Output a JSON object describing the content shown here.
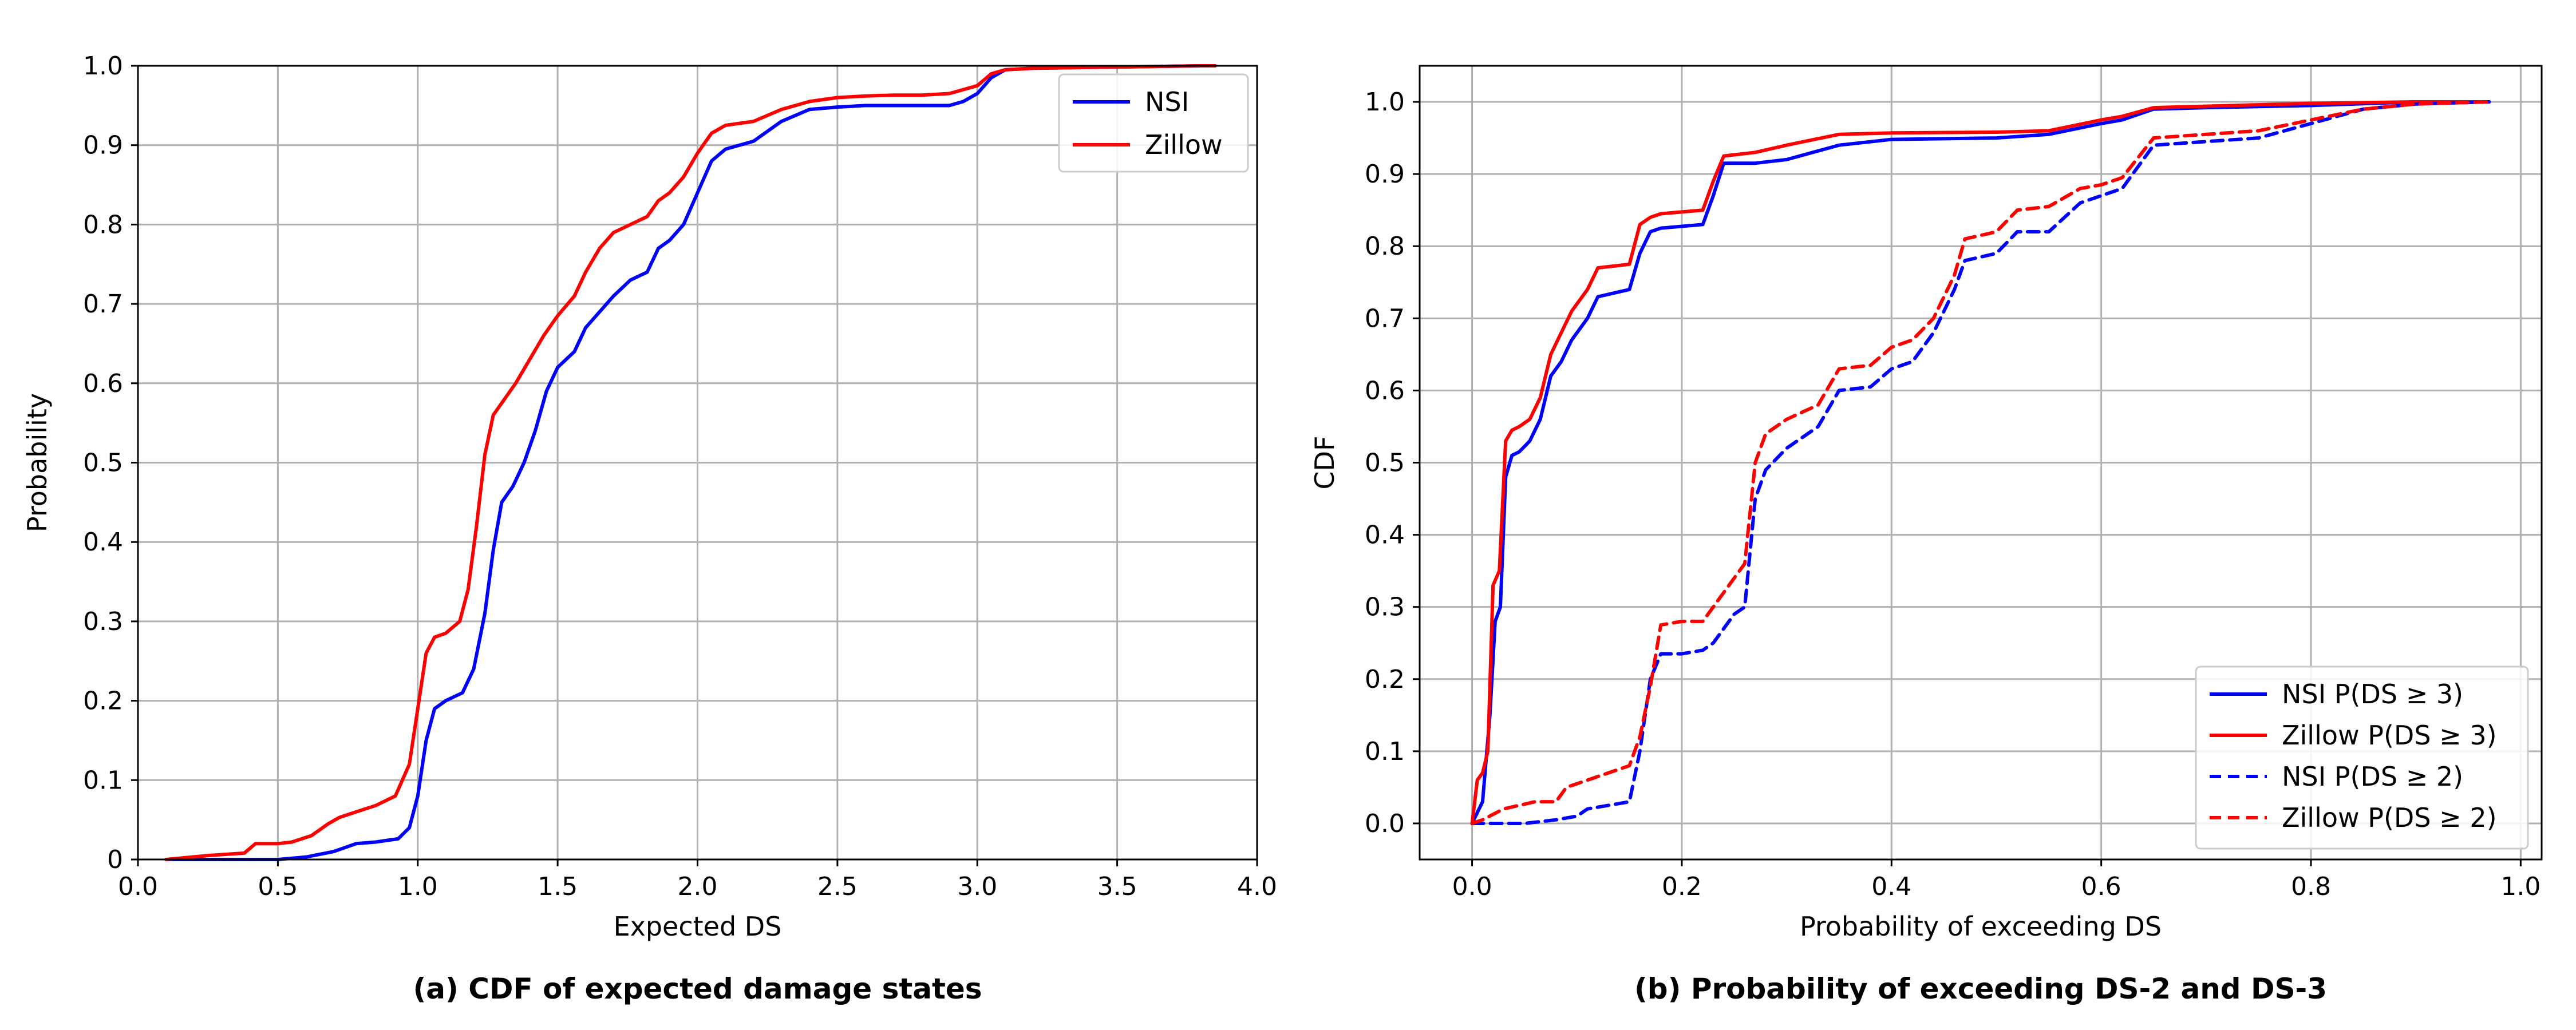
{
  "colors": {
    "nsi": "#0000ff",
    "zillow": "#ff0000",
    "grid": "#b0b0b0",
    "axis": "#000000"
  },
  "chart_data": [
    {
      "type": "line",
      "caption": "(a) CDF of expected damage states",
      "xlabel": "Expected DS",
      "ylabel": "Probability",
      "xlim": [
        0.0,
        4.0
      ],
      "ylim": [
        0.0,
        1.0
      ],
      "xticks": [
        0.0,
        0.5,
        1.0,
        1.5,
        2.0,
        2.5,
        3.0,
        3.5,
        4.0
      ],
      "xtick_labels": [
        "0.0",
        "0.5",
        "1.0",
        "1.5",
        "2.0",
        "2.5",
        "3.0",
        "3.5",
        "4.0"
      ],
      "yticks": [
        0,
        0.1,
        0.2,
        0.3,
        0.4,
        0.5,
        0.6,
        0.7,
        0.8,
        0.9,
        1.0
      ],
      "ytick_labels": [
        "0",
        "0.1",
        "0.2",
        "0.3",
        "0.4",
        "0.5",
        "0.6",
        "0.7",
        "0.8",
        "0.9",
        "1.0"
      ],
      "grid": true,
      "legend_position": "top-right",
      "series": [
        {
          "name": "NSI",
          "color": "#0000ff",
          "dash": "solid",
          "x": [
            0.1,
            0.5,
            0.6,
            0.7,
            0.78,
            0.85,
            0.93,
            0.97,
            1.0,
            1.03,
            1.06,
            1.1,
            1.16,
            1.2,
            1.24,
            1.27,
            1.3,
            1.34,
            1.38,
            1.42,
            1.46,
            1.5,
            1.56,
            1.6,
            1.65,
            1.7,
            1.76,
            1.82,
            1.86,
            1.9,
            1.95,
            2.0,
            2.05,
            2.1,
            2.15,
            2.2,
            2.3,
            2.4,
            2.5,
            2.6,
            2.7,
            2.8,
            2.9,
            2.95,
            3.0,
            3.05,
            3.1,
            3.2,
            3.4,
            3.6,
            3.8,
            3.85
          ],
          "y": [
            0.0,
            0.0,
            0.003,
            0.01,
            0.02,
            0.022,
            0.026,
            0.04,
            0.08,
            0.15,
            0.19,
            0.2,
            0.21,
            0.24,
            0.31,
            0.39,
            0.45,
            0.47,
            0.5,
            0.54,
            0.59,
            0.62,
            0.64,
            0.67,
            0.69,
            0.71,
            0.73,
            0.74,
            0.77,
            0.78,
            0.8,
            0.84,
            0.88,
            0.895,
            0.9,
            0.905,
            0.93,
            0.945,
            0.948,
            0.95,
            0.95,
            0.95,
            0.95,
            0.955,
            0.965,
            0.985,
            0.995,
            0.997,
            0.998,
            0.999,
            1.0,
            1.0
          ]
        },
        {
          "name": "Zillow",
          "color": "#ff0000",
          "dash": "solid",
          "x": [
            0.1,
            0.25,
            0.38,
            0.42,
            0.5,
            0.55,
            0.62,
            0.68,
            0.72,
            0.78,
            0.85,
            0.92,
            0.97,
            1.0,
            1.03,
            1.06,
            1.1,
            1.15,
            1.18,
            1.21,
            1.24,
            1.27,
            1.3,
            1.35,
            1.4,
            1.45,
            1.5,
            1.56,
            1.6,
            1.65,
            1.7,
            1.76,
            1.82,
            1.86,
            1.9,
            1.95,
            2.0,
            2.05,
            2.1,
            2.2,
            2.3,
            2.4,
            2.5,
            2.6,
            2.7,
            2.8,
            2.9,
            2.95,
            3.0,
            3.05,
            3.1,
            3.2,
            3.4,
            3.6,
            3.8,
            3.85
          ],
          "y": [
            0.0,
            0.005,
            0.008,
            0.02,
            0.02,
            0.022,
            0.03,
            0.045,
            0.053,
            0.06,
            0.068,
            0.08,
            0.12,
            0.19,
            0.26,
            0.28,
            0.285,
            0.3,
            0.34,
            0.42,
            0.51,
            0.56,
            0.575,
            0.6,
            0.63,
            0.66,
            0.685,
            0.71,
            0.74,
            0.77,
            0.79,
            0.8,
            0.81,
            0.83,
            0.84,
            0.86,
            0.89,
            0.915,
            0.925,
            0.93,
            0.945,
            0.955,
            0.96,
            0.962,
            0.963,
            0.963,
            0.965,
            0.97,
            0.975,
            0.99,
            0.995,
            0.997,
            0.998,
            0.999,
            1.0,
            1.0
          ]
        }
      ]
    },
    {
      "type": "line",
      "caption": "(b) Probability of exceeding DS-2 and DS-3",
      "xlabel": "Probability of exceeding DS",
      "ylabel": "CDF",
      "xlim": [
        -0.05,
        1.02
      ],
      "ylim": [
        -0.05,
        1.05
      ],
      "xticks": [
        0.0,
        0.2,
        0.4,
        0.6,
        0.8,
        1.0
      ],
      "xtick_labels": [
        "0.0",
        "0.2",
        "0.4",
        "0.6",
        "0.8",
        "1.0"
      ],
      "yticks": [
        0.0,
        0.1,
        0.2,
        0.3,
        0.4,
        0.5,
        0.6,
        0.7,
        0.8,
        0.9,
        1.0
      ],
      "ytick_labels": [
        "0.0",
        "0.1",
        "0.2",
        "0.3",
        "0.4",
        "0.5",
        "0.6",
        "0.7",
        "0.8",
        "0.9",
        "1.0"
      ],
      "grid": true,
      "legend_position": "lower-right",
      "series": [
        {
          "name": "NSI P(DS ≥ 3)",
          "color": "#0000ff",
          "dash": "solid",
          "x": [
            0.0,
            0.01,
            0.017,
            0.022,
            0.027,
            0.032,
            0.038,
            0.045,
            0.055,
            0.065,
            0.075,
            0.085,
            0.095,
            0.11,
            0.12,
            0.15,
            0.16,
            0.17,
            0.18,
            0.22,
            0.23,
            0.24,
            0.27,
            0.3,
            0.35,
            0.4,
            0.5,
            0.55,
            0.6,
            0.62,
            0.65,
            0.7,
            0.8,
            0.9,
            0.97
          ],
          "y": [
            0.0,
            0.03,
            0.15,
            0.28,
            0.3,
            0.48,
            0.51,
            0.515,
            0.53,
            0.56,
            0.62,
            0.64,
            0.67,
            0.7,
            0.73,
            0.74,
            0.79,
            0.82,
            0.825,
            0.83,
            0.87,
            0.915,
            0.915,
            0.92,
            0.94,
            0.948,
            0.95,
            0.955,
            0.97,
            0.975,
            0.99,
            0.992,
            0.995,
            1.0,
            1.0
          ]
        },
        {
          "name": "Zillow P(DS ≥ 3)",
          "color": "#ff0000",
          "dash": "solid",
          "x": [
            0.0,
            0.005,
            0.01,
            0.015,
            0.02,
            0.026,
            0.032,
            0.038,
            0.045,
            0.055,
            0.065,
            0.075,
            0.085,
            0.095,
            0.11,
            0.12,
            0.15,
            0.16,
            0.17,
            0.18,
            0.22,
            0.23,
            0.24,
            0.27,
            0.3,
            0.35,
            0.4,
            0.5,
            0.55,
            0.6,
            0.62,
            0.65,
            0.7,
            0.8,
            0.9,
            0.97
          ],
          "y": [
            0.0,
            0.06,
            0.07,
            0.1,
            0.33,
            0.35,
            0.53,
            0.545,
            0.55,
            0.56,
            0.59,
            0.65,
            0.68,
            0.71,
            0.74,
            0.77,
            0.775,
            0.83,
            0.84,
            0.845,
            0.85,
            0.89,
            0.925,
            0.93,
            0.94,
            0.955,
            0.957,
            0.958,
            0.96,
            0.975,
            0.98,
            0.992,
            0.994,
            0.998,
            1.0,
            1.0
          ]
        },
        {
          "name": "NSI P(DS ≥ 2)",
          "color": "#0000ff",
          "dash": "dashed",
          "x": [
            0.0,
            0.02,
            0.05,
            0.08,
            0.1,
            0.11,
            0.15,
            0.16,
            0.17,
            0.18,
            0.2,
            0.22,
            0.23,
            0.25,
            0.26,
            0.27,
            0.28,
            0.3,
            0.33,
            0.35,
            0.38,
            0.4,
            0.42,
            0.44,
            0.46,
            0.47,
            0.5,
            0.52,
            0.55,
            0.58,
            0.6,
            0.62,
            0.65,
            0.7,
            0.75,
            0.8,
            0.85,
            0.9,
            0.97
          ],
          "y": [
            0.0,
            0.0,
            0.0,
            0.005,
            0.01,
            0.02,
            0.03,
            0.1,
            0.2,
            0.235,
            0.235,
            0.24,
            0.25,
            0.29,
            0.3,
            0.45,
            0.49,
            0.52,
            0.55,
            0.6,
            0.605,
            0.63,
            0.64,
            0.68,
            0.74,
            0.78,
            0.79,
            0.82,
            0.82,
            0.86,
            0.87,
            0.88,
            0.94,
            0.945,
            0.95,
            0.97,
            0.99,
            0.997,
            1.0
          ]
        },
        {
          "name": "Zillow P(DS ≥ 2)",
          "color": "#ff0000",
          "dash": "dashed",
          "x": [
            0.0,
            0.01,
            0.03,
            0.06,
            0.08,
            0.09,
            0.1,
            0.12,
            0.15,
            0.16,
            0.17,
            0.18,
            0.2,
            0.22,
            0.23,
            0.25,
            0.26,
            0.27,
            0.28,
            0.3,
            0.33,
            0.35,
            0.38,
            0.4,
            0.42,
            0.44,
            0.46,
            0.47,
            0.5,
            0.52,
            0.55,
            0.58,
            0.6,
            0.62,
            0.65,
            0.7,
            0.75,
            0.8,
            0.85,
            0.9,
            0.97
          ],
          "y": [
            0.0,
            0.005,
            0.02,
            0.03,
            0.03,
            0.05,
            0.055,
            0.065,
            0.08,
            0.12,
            0.19,
            0.275,
            0.28,
            0.28,
            0.3,
            0.34,
            0.36,
            0.5,
            0.54,
            0.56,
            0.58,
            0.63,
            0.635,
            0.66,
            0.67,
            0.7,
            0.76,
            0.81,
            0.82,
            0.85,
            0.855,
            0.88,
            0.885,
            0.895,
            0.95,
            0.955,
            0.96,
            0.975,
            0.99,
            0.997,
            1.0
          ]
        }
      ]
    }
  ]
}
